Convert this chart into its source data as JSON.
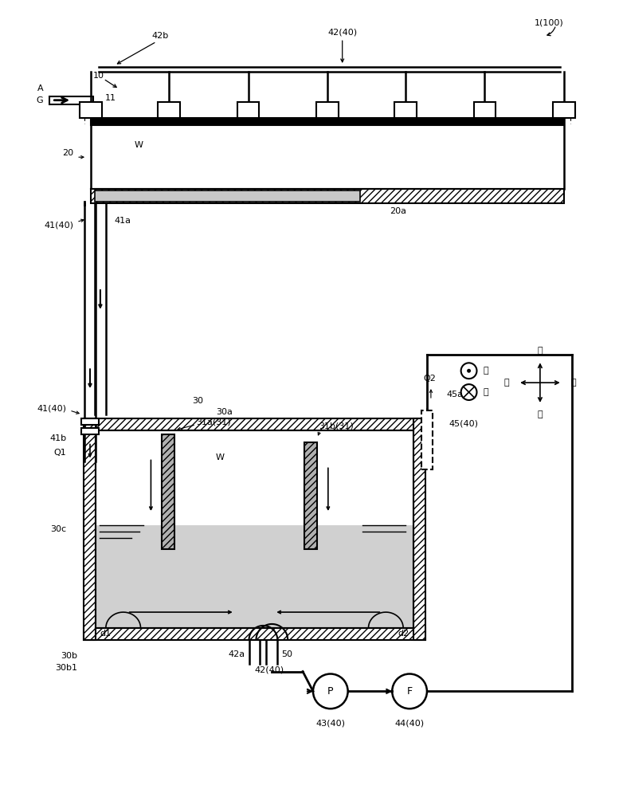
{
  "fig_width": 7.77,
  "fig_height": 10.0,
  "dpi": 100,
  "bg_color": "#ffffff",
  "lc": "#000000",
  "fs": 8.0,
  "labels": {
    "ref_1100": "1(100)",
    "label_42_40": "42(40)",
    "label_42b": "42b",
    "label_11": "11",
    "label_20": "20",
    "label_20a": "20a",
    "label_41_40_top": "41(40)",
    "label_41a": "41a",
    "label_G": "G",
    "label_A": "A",
    "label_10": "10",
    "label_W_top": "W",
    "label_front": "前",
    "label_back": "后",
    "label_up": "上",
    "label_down": "下",
    "label_left": "左",
    "label_right": "右",
    "label_30": "30",
    "label_30a": "30a",
    "label_30c": "30c",
    "label_30b": "30b",
    "label_30b1": "30b1",
    "label_41_40_bot": "41(40)",
    "label_41b": "41b",
    "label_Q1": "Q1",
    "label_31a": "31a(31)",
    "label_31b": "31b(31)",
    "label_W_tank": "W",
    "label_45_40": "45(40)",
    "label_45a": "45a",
    "label_Q2": "Q2",
    "label_d1": "d1",
    "label_d2": "d2",
    "label_42a": "42a",
    "label_42_40_bot": "42(40)",
    "label_50": "50",
    "label_P": "P",
    "label_F": "F",
    "label_43_40": "43(40)",
    "label_44_40": "44(40)"
  }
}
